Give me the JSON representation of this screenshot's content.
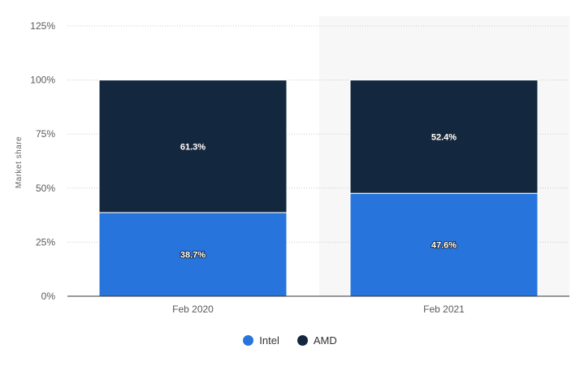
{
  "chart_data": {
    "type": "bar",
    "stacked": true,
    "categories": [
      "Feb 2020",
      "Feb 2021"
    ],
    "series": [
      {
        "name": "Intel",
        "values": [
          38.7,
          47.6
        ],
        "color": "#2775dc",
        "labels": [
          "38.7%",
          "47.6%"
        ]
      },
      {
        "name": "AMD",
        "values": [
          61.3,
          52.4
        ],
        "color": "#13283f",
        "labels": [
          "61.3%",
          "52.4%"
        ]
      }
    ],
    "ylabel": "Market share",
    "ylim": [
      0,
      125
    ],
    "yticks": [
      0,
      25,
      50,
      75,
      100,
      125
    ],
    "ytick_labels": [
      "0%",
      "25%",
      "50%",
      "75%",
      "100%",
      "125%"
    ],
    "grid": true,
    "legend": "bottom-center"
  }
}
